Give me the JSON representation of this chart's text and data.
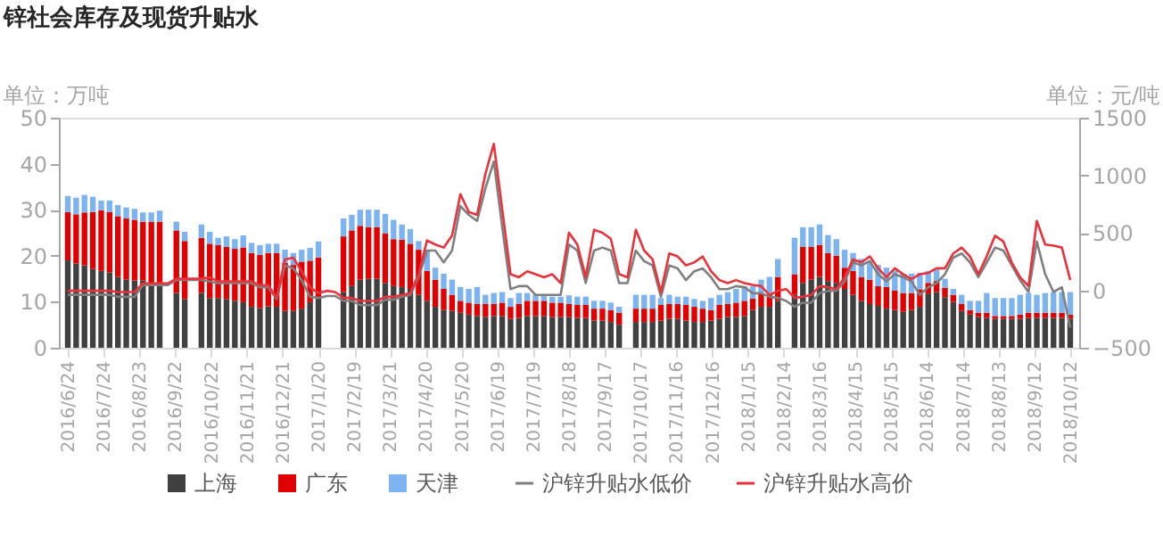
{
  "chart_data": {
    "type": "bar",
    "title": "锌社会库存及现货升贴水",
    "ylabel": "单位：万吨",
    "y2label": "单位：元/吨",
    "stacked": true,
    "grid": false,
    "legend": "bottom",
    "marker": "none",
    "line_style": "solid",
    "x": [
      "2016-06-24",
      "2016-07-01",
      "2016-07-08",
      "2016-07-15",
      "2016-07-22",
      "2016-07-29",
      "2016-08-05",
      "2016-08-12",
      "2016-08-19",
      "2016-08-26",
      "2016-09-02",
      "2016-09-09",
      "2016-09-16",
      "2016-09-23",
      "2016-09-30",
      "2016-10-07",
      "2016-10-14",
      "2016-10-21",
      "2016-10-28",
      "2016-11-04",
      "2016-11-11",
      "2016-11-18",
      "2016-11-25",
      "2016-12-02",
      "2016-12-09",
      "2016-12-16",
      "2016-12-23",
      "2016-12-30",
      "2017-01-06",
      "2017-01-13",
      "2017-01-20",
      "2017-01-27",
      "2017-02-03",
      "2017-02-10",
      "2017-02-17",
      "2017-02-24",
      "2017-03-03",
      "2017-03-10",
      "2017-03-17",
      "2017-03-24",
      "2017-03-31",
      "2017-04-07",
      "2017-04-14",
      "2017-04-21",
      "2017-04-28",
      "2017-05-05",
      "2017-05-12",
      "2017-05-19",
      "2017-05-26",
      "2017-06-02",
      "2017-06-09",
      "2017-06-16",
      "2017-06-23",
      "2017-06-30",
      "2017-07-07",
      "2017-07-14",
      "2017-07-21",
      "2017-07-28",
      "2017-08-04",
      "2017-08-11",
      "2017-08-18",
      "2017-08-25",
      "2017-09-01",
      "2017-09-08",
      "2017-09-15",
      "2017-09-22",
      "2017-09-29",
      "2017-10-06",
      "2017-10-13",
      "2017-10-20",
      "2017-10-27",
      "2017-11-03",
      "2017-11-10",
      "2017-11-17",
      "2017-11-24",
      "2017-12-01",
      "2017-12-08",
      "2017-12-15",
      "2017-12-22",
      "2017-12-29",
      "2018-01-05",
      "2018-01-12",
      "2018-01-19",
      "2018-01-26",
      "2018-02-02",
      "2018-02-09",
      "2018-02-16",
      "2018-02-23",
      "2018-03-02",
      "2018-03-09",
      "2018-03-16",
      "2018-03-23",
      "2018-03-30",
      "2018-04-06",
      "2018-04-13",
      "2018-04-20",
      "2018-04-27",
      "2018-05-04",
      "2018-05-11",
      "2018-05-18",
      "2018-05-25",
      "2018-06-01",
      "2018-06-08",
      "2018-06-15",
      "2018-06-22",
      "2018-06-29",
      "2018-07-06",
      "2018-07-13",
      "2018-07-20",
      "2018-07-27",
      "2018-08-03",
      "2018-08-10",
      "2018-08-17",
      "2018-08-24",
      "2018-08-31",
      "2018-09-07",
      "2018-09-14",
      "2018-09-21",
      "2018-09-28",
      "2018-10-05",
      "2018-10-12"
    ],
    "xlim": [
      "2016-06-24",
      "2018-10-12"
    ],
    "xticks": [
      {
        "value": "2016-06-24",
        "label": "2016/6/24"
      },
      {
        "value": "2016-07-24",
        "label": "2016/7/24"
      },
      {
        "value": "2016-08-23",
        "label": "2016/8/23"
      },
      {
        "value": "2016-09-22",
        "label": "2016/9/22"
      },
      {
        "value": "2016-10-22",
        "label": "2016/10/22"
      },
      {
        "value": "2016-11-21",
        "label": "2016/11/21"
      },
      {
        "value": "2016-12-21",
        "label": "2016/12/21"
      },
      {
        "value": "2017-01-20",
        "label": "2017/1/20"
      },
      {
        "value": "2017-02-19",
        "label": "2017/2/19"
      },
      {
        "value": "2017-03-21",
        "label": "2017/3/21"
      },
      {
        "value": "2017-04-20",
        "label": "2017/4/20"
      },
      {
        "value": "2017-05-20",
        "label": "2017/5/20"
      },
      {
        "value": "2017-06-19",
        "label": "2017/6/19"
      },
      {
        "value": "2017-07-19",
        "label": "2017/7/19"
      },
      {
        "value": "2017-08-18",
        "label": "2017/8/18"
      },
      {
        "value": "2017-09-17",
        "label": "2017/9/17"
      },
      {
        "value": "2017-10-17",
        "label": "2017/10/17"
      },
      {
        "value": "2017-11-16",
        "label": "2017/11/16"
      },
      {
        "value": "2017-12-16",
        "label": "2017/12/16"
      },
      {
        "value": "2018-01-15",
        "label": "2018/1/15"
      },
      {
        "value": "2018-02-14",
        "label": "2018/2/14"
      },
      {
        "value": "2018-03-16",
        "label": "2018/3/16"
      },
      {
        "value": "2018-04-15",
        "label": "2018/4/15"
      },
      {
        "value": "2018-05-15",
        "label": "2018/5/15"
      },
      {
        "value": "2018-06-14",
        "label": "2018/6/14"
      },
      {
        "value": "2018-07-14",
        "label": "2018/7/14"
      },
      {
        "value": "2018-08-13",
        "label": "2018/8/13"
      },
      {
        "value": "2018-09-12",
        "label": "2018/9/12"
      },
      {
        "value": "2018-10-12",
        "label": "2018/10/12"
      }
    ],
    "ylim": [
      0,
      50
    ],
    "yticks": [
      0,
      10,
      20,
      30,
      40,
      50
    ],
    "y2lim": [
      -500,
      1500
    ],
    "y2ticks": [
      -500,
      0,
      500,
      1000,
      1500
    ],
    "series": [
      {
        "name": "上海",
        "color": "#404040",
        "values": [
          19,
          18.3,
          17.9,
          17.1,
          16.7,
          16.4,
          15.4,
          14.8,
          14.6,
          14.6,
          14,
          13.5,
          null,
          11.9,
          10.6,
          null,
          11.9,
          10.8,
          10.8,
          10.6,
          10.2,
          9.9,
          8.9,
          8.6,
          9,
          8.9,
          8,
          8,
          8.5,
          9.9,
          10.8,
          null,
          null,
          12.1,
          13.4,
          14.8,
          15,
          15,
          14.1,
          13.4,
          13.2,
          12.8,
          11.5,
          10.2,
          8.9,
          8.2,
          8,
          7.6,
          7.2,
          6.9,
          6.7,
          6.9,
          6.9,
          6.3,
          6.5,
          6.9,
          6.9,
          6.9,
          6.7,
          6.7,
          6.7,
          6.5,
          6.5,
          5.9,
          5.9,
          5.6,
          5,
          null,
          5.6,
          5.6,
          5.6,
          5.9,
          6.3,
          6.3,
          5.9,
          5.6,
          5.6,
          5.9,
          6.3,
          6.7,
          6.7,
          6.9,
          8.2,
          8.9,
          8.9,
          10.2,
          null,
          11.5,
          14.1,
          14.8,
          15.4,
          14.5,
          14.1,
          12.8,
          11.5,
          10.2,
          9.5,
          9.1,
          8.5,
          8.2,
          7.8,
          8.2,
          8.9,
          11.8,
          12.1,
          11,
          10,
          8,
          7.2,
          6.7,
          6.5,
          6.3,
          6.3,
          6.3,
          6.3,
          6.5,
          6.5,
          6.5,
          6.5,
          6.5,
          6.3
        ]
      },
      {
        "name": "广东",
        "color": "#e00000",
        "values": [
          10.5,
          10.7,
          11.5,
          12.4,
          13.2,
          13.1,
          13.2,
          13.3,
          13.2,
          12.8,
          13.4,
          13.9,
          null,
          13.6,
          12.6,
          null,
          12,
          11.8,
          11.5,
          11.3,
          11.3,
          11.9,
          11.7,
          11.6,
          11.6,
          11.7,
          10.4,
          10,
          10.2,
          9,
          8.8,
          null,
          null,
          12.1,
          12.1,
          11.7,
          11.2,
          11.2,
          10.8,
          10.2,
          10.3,
          9.8,
          9.8,
          6.5,
          5.9,
          4.6,
          3.5,
          2.6,
          2.6,
          2.6,
          2.8,
          2.6,
          2.9,
          2.6,
          3,
          3.3,
          3.3,
          3.3,
          3.1,
          3.1,
          2.8,
          2.8,
          2.8,
          2.6,
          2.6,
          2.6,
          2.6,
          null,
          2.9,
          2.9,
          2.9,
          3.4,
          3.2,
          3.2,
          3.4,
          3.3,
          2.9,
          2.3,
          3,
          2.8,
          3.1,
          3.3,
          2.5,
          3,
          2.6,
          5.2,
          null,
          4.5,
          7.8,
          7.1,
          6.9,
          6.1,
          5.9,
          4.6,
          5.2,
          5.2,
          5.3,
          4.3,
          4.7,
          4.2,
          4.1,
          3.7,
          3.8,
          2.3,
          2.4,
          2,
          1.5,
          1.5,
          1,
          0.9,
          1.1,
          0.6,
          0.6,
          0.6,
          0.9,
          1.1,
          1.1,
          1.1,
          1.1,
          1.1,
          0.9
        ]
      },
      {
        "name": "天津",
        "color": "#7eb3f2",
        "values": [
          3.5,
          3.6,
          3.8,
          3.3,
          2.1,
          2.5,
          2.4,
          2.4,
          2.4,
          2,
          2,
          2.4,
          null,
          1.9,
          2,
          null,
          2.9,
          2.6,
          1.6,
          2.3,
          2.1,
          2.6,
          2.2,
          2.1,
          2,
          2,
          2.9,
          2.6,
          2.6,
          2.8,
          3.5,
          null,
          null,
          3.9,
          3.4,
          3.5,
          3.8,
          3.8,
          4.2,
          4.2,
          3.3,
          3.2,
          1.9,
          4.6,
          2.6,
          3.3,
          3.3,
          3,
          3,
          3.7,
          2,
          2.4,
          2.3,
          1.9,
          2.4,
          1.7,
          1.3,
          1.3,
          1.3,
          1.3,
          1.9,
          1.8,
          1.8,
          1.7,
          1.7,
          1.6,
          1.3,
          null,
          3,
          3,
          3,
          1.5,
          2,
          1.6,
          1.8,
          1.7,
          1.7,
          2.6,
          2.2,
          2.6,
          3,
          3.2,
          2.7,
          2.9,
          3.9,
          3.9,
          null,
          7.9,
          4.3,
          4.3,
          4.5,
          3.9,
          3.6,
          3.9,
          3.9,
          3.9,
          4.1,
          4.6,
          4.2,
          4.3,
          4.2,
          4.2,
          3.6,
          2.6,
          2.5,
          2,
          1.3,
          2,
          2,
          2.6,
          4.3,
          3.9,
          3.9,
          3.9,
          4.3,
          4.3,
          3.9,
          4.3,
          4.5,
          4.5,
          4.9
        ]
      },
      {
        "name": "沪锌升贴水低价",
        "type": "line",
        "axis": "y2",
        "color": "#7f7f7f",
        "values": [
          -40,
          -40,
          -40,
          -40,
          -40,
          -40,
          -57,
          -57,
          -57,
          45,
          45,
          45,
          45,
          90,
          90,
          90,
          90,
          75,
          62,
          62,
          62,
          62,
          62,
          25,
          25,
          -77,
          216,
          190,
          88,
          -57,
          -67,
          -50,
          -50,
          -93,
          -93,
          -129,
          -129,
          -129,
          -82,
          -82,
          -57,
          -41,
          113,
          345,
          345,
          242,
          345,
          732,
          655,
          603,
          887,
          1119,
          552,
          10,
          36,
          36,
          -41,
          -41,
          -41,
          -41,
          397,
          345,
          62,
          345,
          371,
          345,
          62,
          62,
          345,
          253,
          216,
          -57,
          216,
          190,
          88,
          165,
          190,
          113,
          10,
          10,
          36,
          26,
          -26,
          -26,
          -57,
          -67,
          -93,
          -144,
          -108,
          -108,
          -26,
          -5,
          -5,
          77,
          242,
          216,
          253,
          139,
          77,
          139,
          113,
          77,
          -41,
          26,
          62,
          139,
          283,
          320,
          242,
          113,
          242,
          371,
          345,
          216,
          88,
          -15,
          423,
          139,
          -15,
          26,
          -325
        ]
      },
      {
        "name": "沪锌升贴水高价",
        "type": "line",
        "axis": "y2",
        "color": "#e8323c",
        "values": [
          -5,
          -5,
          -5,
          -5,
          -5,
          -5,
          -15,
          -15,
          -15,
          60,
          60,
          60,
          60,
          100,
          100,
          100,
          100,
          113,
          77,
          77,
          77,
          77,
          77,
          45,
          45,
          -67,
          268,
          283,
          165,
          26,
          -26,
          -5,
          -15,
          -67,
          -67,
          -93,
          -93,
          -93,
          -57,
          -57,
          -41,
          -26,
          139,
          433,
          397,
          371,
          474,
          835,
          680,
          655,
          1015,
          1273,
          706,
          139,
          113,
          165,
          139,
          113,
          139,
          62,
          500,
          397,
          113,
          526,
          500,
          448,
          139,
          113,
          526,
          345,
          268,
          -15,
          320,
          294,
          216,
          242,
          294,
          165,
          88,
          62,
          88,
          62,
          46,
          36,
          -41,
          -5,
          10,
          -67,
          -57,
          -41,
          36,
          26,
          10,
          113,
          268,
          242,
          294,
          191,
          113,
          191,
          139,
          98,
          139,
          150,
          191,
          191,
          320,
          371,
          294,
          139,
          294,
          474,
          423,
          242,
          113,
          36,
          603,
          397,
          387,
          371,
          88
        ]
      }
    ]
  }
}
